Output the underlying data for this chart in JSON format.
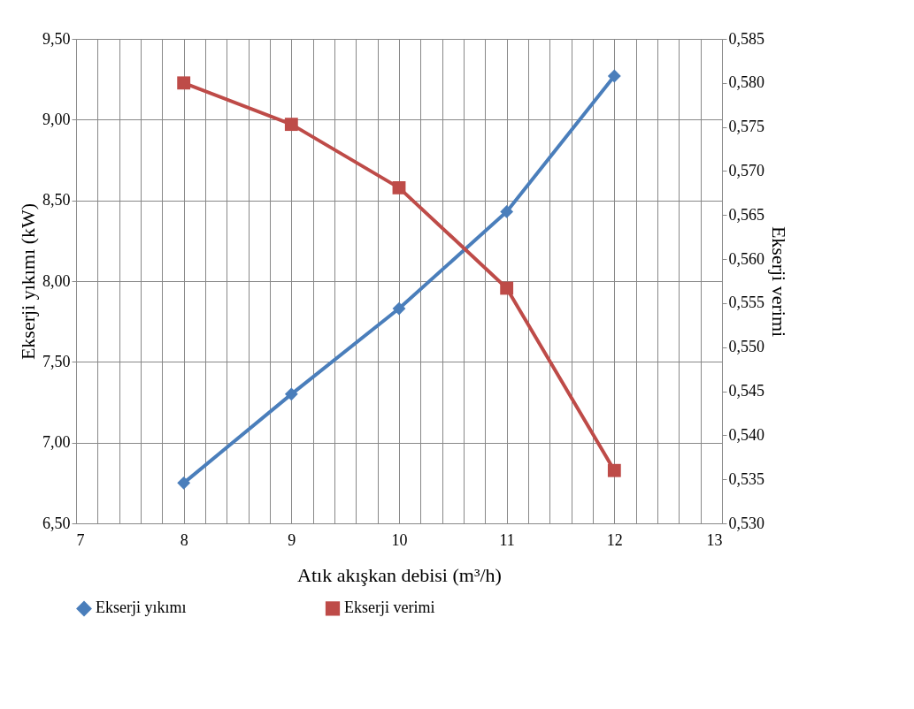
{
  "chart_data": {
    "type": "line",
    "xlabel": "Atık akışkan debisi (m³/h)",
    "ylabel": "Ekserji yıkımı (kW)",
    "y2label": "Ekserji verimi",
    "x": [
      8,
      9,
      10,
      11,
      12
    ],
    "series": [
      {
        "name": "Ekserji yıkımı",
        "color": "#4a7ebb",
        "marker": "diamond",
        "values": [
          6.75,
          7.3,
          7.83,
          8.43,
          9.27
        ]
      },
      {
        "name": "Ekserji verimi",
        "color": "#be4b48",
        "marker": "square",
        "axis": "y2",
        "values": [
          0.58,
          0.5753,
          0.5681,
          0.5567,
          0.536
        ]
      }
    ],
    "xlim": [
      7,
      13
    ],
    "xticks": [
      7,
      {
        "value": 7.2,
        "label": null
      },
      {
        "value": 7.4,
        "label": null
      },
      {
        "value": 7.6,
        "label": null
      },
      {
        "value": 7.8,
        "label": null
      },
      8,
      {
        "value": 8.2,
        "label": null
      },
      {
        "value": 8.4,
        "label": null
      },
      {
        "value": 8.6,
        "label": null
      },
      {
        "value": 8.8,
        "label": null
      },
      9,
      {
        "value": 9.2,
        "label": null
      },
      {
        "value": 9.4,
        "label": null
      },
      {
        "value": 9.6,
        "label": null
      },
      {
        "value": 9.8,
        "label": null
      },
      10,
      {
        "value": 10.2,
        "label": null
      },
      {
        "value": 10.4,
        "label": null
      },
      {
        "value": 10.6,
        "label": null
      },
      {
        "value": 10.8,
        "label": null
      },
      11,
      {
        "value": 11.2,
        "label": null
      },
      {
        "value": 11.4,
        "label": null
      },
      {
        "value": 11.6,
        "label": null
      },
      {
        "value": 11.8,
        "label": null
      },
      12,
      {
        "value": 12.2,
        "label": null
      },
      {
        "value": 12.4,
        "label": null
      },
      {
        "value": 12.6,
        "label": null
      },
      {
        "value": 12.8,
        "label": null
      },
      13
    ],
    "ylim": [
      6.5,
      9.5
    ],
    "yticks": [
      {
        "value": 6.5,
        "label": "6,50"
      },
      {
        "value": 7.0,
        "label": "7,00"
      },
      {
        "value": 7.5,
        "label": "7,50"
      },
      {
        "value": 8.0,
        "label": "8,00"
      },
      {
        "value": 8.5,
        "label": "8,50"
      },
      {
        "value": 9.0,
        "label": "9,00"
      },
      {
        "value": 9.5,
        "label": "9,50"
      }
    ],
    "y2lim": [
      0.53,
      0.585
    ],
    "y2ticks": [
      {
        "value": 0.53,
        "label": "0,530"
      },
      {
        "value": 0.535,
        "label": "0,535"
      },
      {
        "value": 0.54,
        "label": "0,540"
      },
      {
        "value": 0.545,
        "label": "0,545"
      },
      {
        "value": 0.55,
        "label": "0,550"
      },
      {
        "value": 0.555,
        "label": "0,555"
      },
      {
        "value": 0.56,
        "label": "0,560"
      },
      {
        "value": 0.565,
        "label": "0,565"
      },
      {
        "value": 0.57,
        "label": "0,570"
      },
      {
        "value": 0.575,
        "label": "0,575"
      },
      {
        "value": 0.58,
        "label": "0,580"
      },
      {
        "value": 0.585,
        "label": "0,585"
      }
    ],
    "grid": true,
    "legend": "bottom",
    "line_style": "solid"
  }
}
